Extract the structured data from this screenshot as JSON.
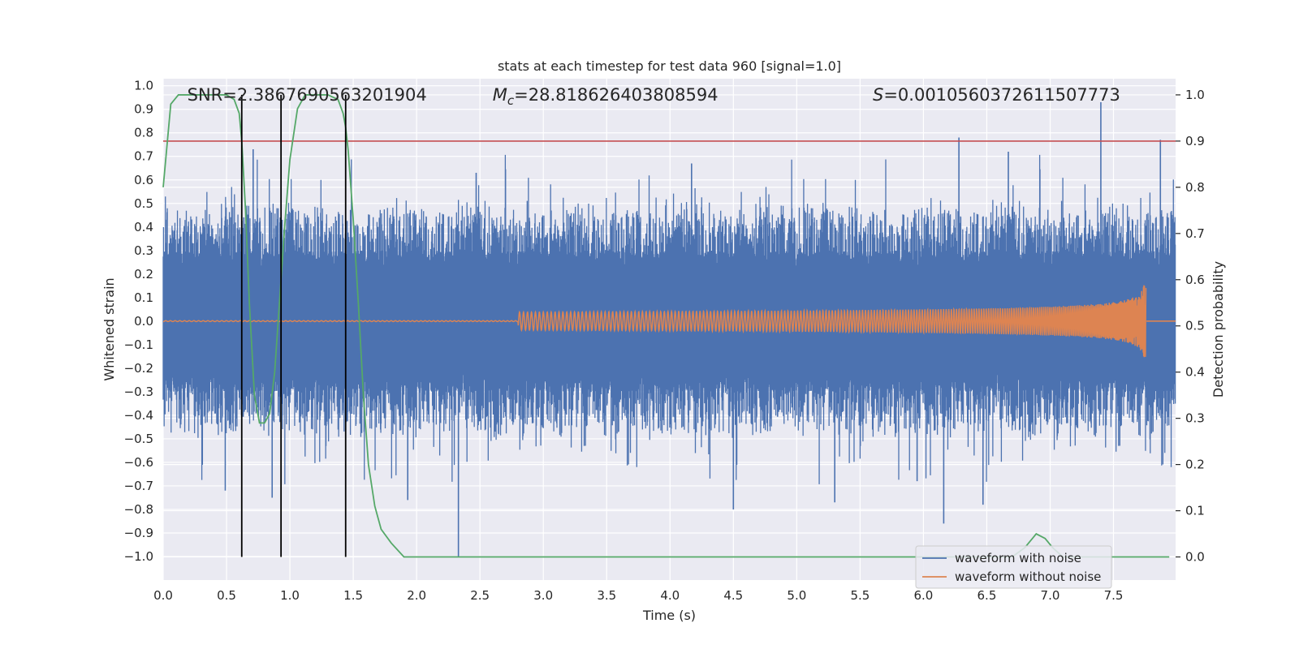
{
  "chart_data": {
    "type": "line",
    "title": "stats at each timestep for test data 960 [signal=1.0]",
    "xlabel": "Time (s)",
    "ylabel": "Whitened strain",
    "ylabel_right": "Detection probability",
    "xlim": [
      0,
      7.99
    ],
    "ylim": [
      -1.1,
      1.03
    ],
    "ylim_right": [
      -0.05,
      1.035
    ],
    "x_ticks": [
      0.0,
      0.5,
      1.0,
      1.5,
      2.0,
      2.5,
      3.0,
      3.5,
      4.0,
      4.5,
      5.0,
      5.5,
      6.0,
      6.5,
      7.0,
      7.5
    ],
    "x_tick_labels": [
      "0.0",
      "0.5",
      "1.0",
      "1.5",
      "2.0",
      "2.5",
      "3.0",
      "3.5",
      "4.0",
      "4.5",
      "5.0",
      "5.5",
      "6.0",
      "6.5",
      "7.0",
      "7.5"
    ],
    "y_ticks": [
      1.0,
      0.9,
      0.8,
      0.7,
      0.6,
      0.5,
      0.4,
      0.3,
      0.2,
      0.1,
      0.0,
      -0.1,
      -0.2,
      -0.3,
      -0.4,
      -0.5,
      -0.6,
      -0.7,
      -0.8,
      -0.9,
      -1.0
    ],
    "y_tick_labels": [
      "1.0",
      "0.9",
      "0.8",
      "0.7",
      "0.6",
      "0.5",
      "0.4",
      "0.3",
      "0.2",
      "0.1",
      "0.0",
      "−0.1",
      "−0.2",
      "−0.3",
      "−0.4",
      "−0.5",
      "−0.6",
      "−0.7",
      "−0.8",
      "−0.9",
      "−1.0"
    ],
    "y_ticks_right": [
      1.0,
      0.9,
      0.8,
      0.7,
      0.6,
      0.5,
      0.4,
      0.3,
      0.2,
      0.1,
      0.0
    ],
    "y_tick_labels_right": [
      "1.0",
      "0.9",
      "0.8",
      "0.7",
      "0.6",
      "0.5",
      "0.4",
      "0.3",
      "0.2",
      "0.1",
      "0.0"
    ],
    "annotations": [
      {
        "text": "SNR=2.3867690563201904",
        "x": 0.19
      },
      {
        "prefix": "M",
        "sub": "c",
        "text": "=28.818626403808594",
        "x": 2.6
      },
      {
        "prefix": "S",
        "text": "=0.0010560372611507773",
        "x": 5.6
      }
    ],
    "legend": {
      "position": "lower-right",
      "entries": [
        {
          "label": "waveform with noise",
          "color": "#4c72b0"
        },
        {
          "label": "waveform without noise",
          "color": "#dd8452"
        }
      ]
    },
    "series": [
      {
        "name": "waveform with noise",
        "color": "#4c72b0",
        "axis": "left",
        "noise": {
          "t_start": 0.0,
          "t_end": 7.99,
          "core_amplitude": 0.3,
          "outer_amplitude": 0.45
        },
        "spikes": [
          {
            "t": 0.71,
            "y": 0.73
          },
          {
            "t": 2.33,
            "y": -1.0
          },
          {
            "t": 6.28,
            "y": 0.78
          },
          {
            "t": 6.67,
            "y": 0.72
          },
          {
            "t": 7.4,
            "y": 0.93
          },
          {
            "t": 7.87,
            "y": 0.77
          },
          {
            "t": 6.16,
            "y": -0.86
          },
          {
            "t": 4.5,
            "y": -0.8
          },
          {
            "t": 5.3,
            "y": -0.77
          },
          {
            "t": 0.49,
            "y": -0.72
          },
          {
            "t": 0.86,
            "y": -0.75
          },
          {
            "t": 1.93,
            "y": -0.76
          },
          {
            "t": 2.47,
            "y": 0.63
          },
          {
            "t": 4.17,
            "y": 0.67
          },
          {
            "t": 5.95,
            "y": -0.68
          },
          {
            "t": 6.47,
            "y": -0.78
          }
        ]
      },
      {
        "name": "waveform without noise",
        "color": "#dd8452",
        "axis": "left",
        "chirp": {
          "t_start": 2.8,
          "t_merge": 7.76,
          "peak_amplitude": 0.17
        }
      },
      {
        "name": "detection probability",
        "color": "#55a868",
        "axis": "right",
        "x": [
          0.0,
          0.06,
          0.12,
          0.2,
          0.3,
          0.4,
          0.5,
          0.56,
          0.6,
          0.62,
          0.65,
          0.68,
          0.72,
          0.76,
          0.8,
          0.84,
          0.88,
          0.92,
          0.96,
          1.0,
          1.06,
          1.12,
          1.2,
          1.3,
          1.38,
          1.42,
          1.44,
          1.46,
          1.5,
          1.54,
          1.58,
          1.62,
          1.67,
          1.72,
          1.8,
          1.9,
          2.0,
          3.0,
          4.0,
          4.4,
          5.0,
          6.0,
          6.7,
          6.8,
          6.89,
          6.96,
          7.02,
          7.1,
          7.5,
          7.94
        ],
        "y": [
          0.8,
          0.98,
          1.0,
          1.0,
          1.0,
          1.0,
          1.0,
          0.99,
          0.96,
          0.9,
          0.75,
          0.55,
          0.35,
          0.29,
          0.29,
          0.31,
          0.4,
          0.56,
          0.72,
          0.86,
          0.97,
          1.0,
          1.0,
          1.0,
          0.99,
          0.96,
          0.93,
          0.88,
          0.73,
          0.55,
          0.35,
          0.2,
          0.11,
          0.06,
          0.03,
          0.0,
          0.0,
          0.0,
          0.0,
          0.0,
          0.0,
          0.0,
          0.0,
          0.02,
          0.05,
          0.04,
          0.02,
          0.0,
          0.0,
          0.0
        ]
      }
    ],
    "threshold_line": {
      "value": 0.9,
      "axis": "right",
      "color": "#c44e52"
    },
    "vertical_lines": [
      0.62,
      0.93,
      1.44
    ]
  }
}
